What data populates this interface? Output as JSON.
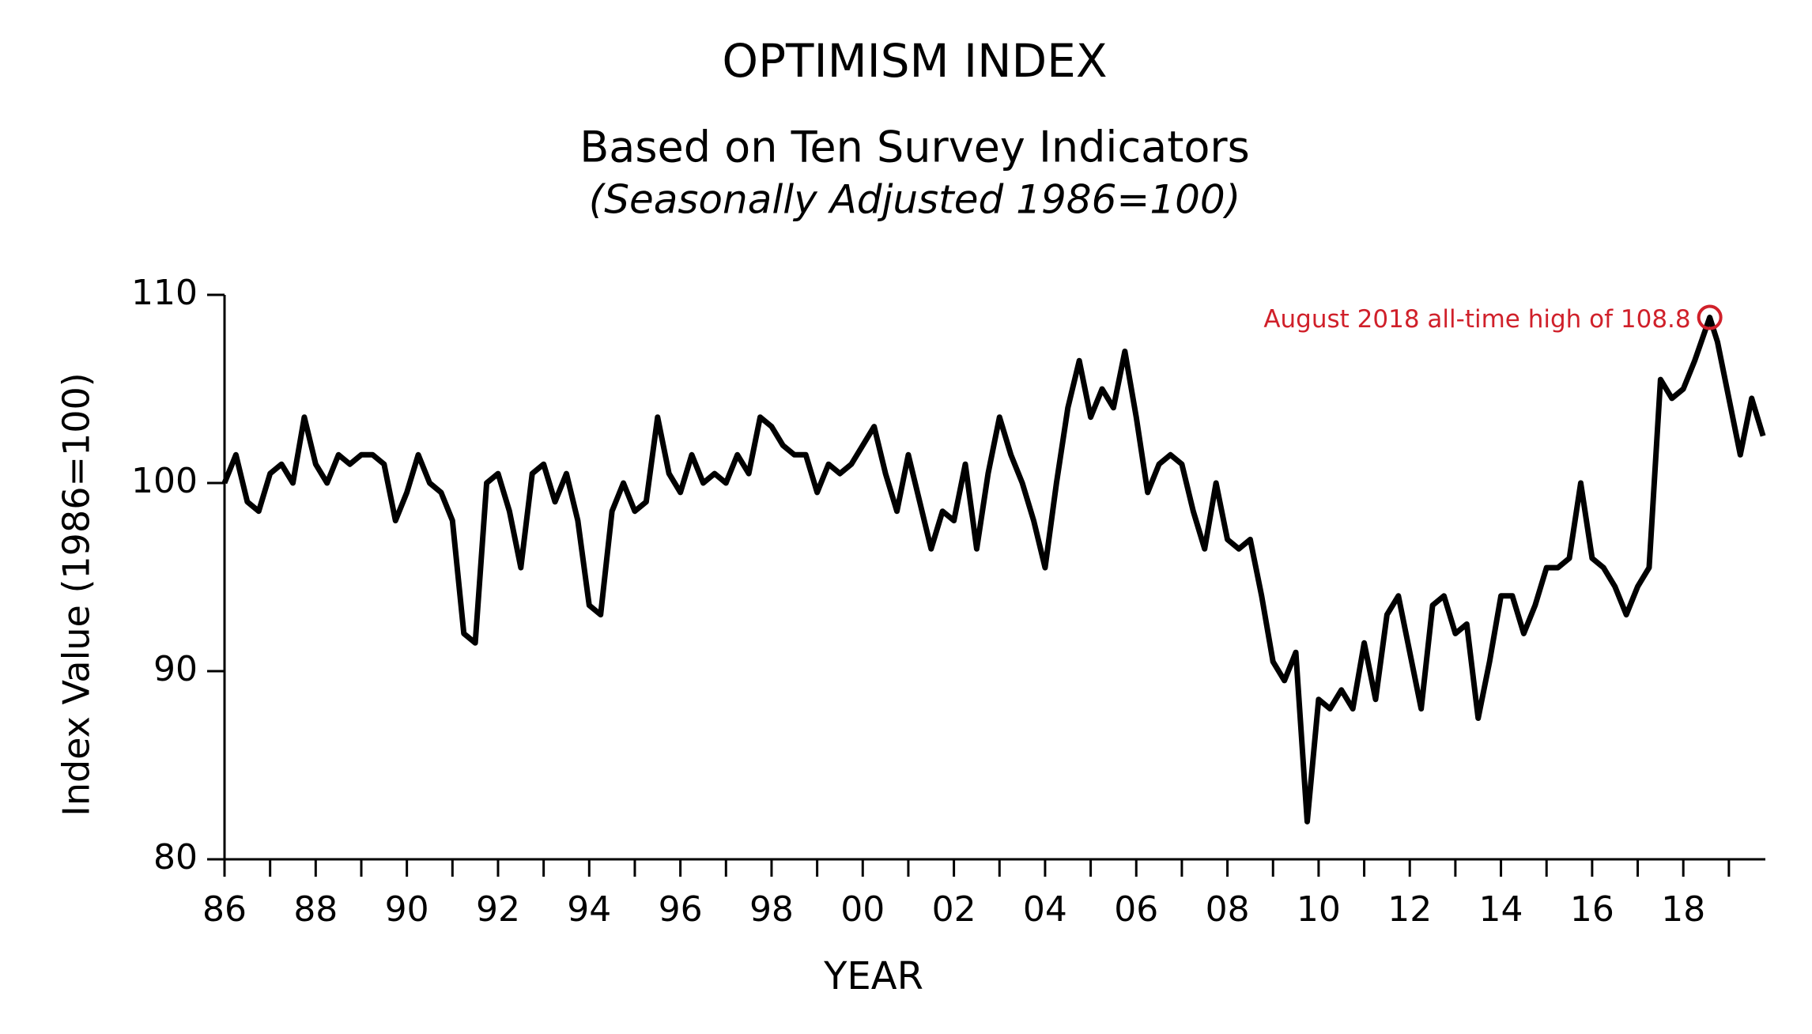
{
  "chart_data": {
    "type": "line",
    "title": "OPTIMISM INDEX",
    "subtitle": "Based on Ten Survey Indicators",
    "subtitle2": "(Seasonally Adjusted 1986=100)",
    "xlabel": "YEAR",
    "ylabel": "Index Value (1986=100)",
    "xlim": [
      1986,
      2019.8
    ],
    "ylim": [
      80,
      110
    ],
    "yticks": [
      80,
      90,
      100,
      110
    ],
    "xticks": [
      {
        "value": 1986,
        "label": "86"
      },
      {
        "value": 1988,
        "label": "88"
      },
      {
        "value": 1990,
        "label": "90"
      },
      {
        "value": 1992,
        "label": "92"
      },
      {
        "value": 1994,
        "label": "94"
      },
      {
        "value": 1996,
        "label": "96"
      },
      {
        "value": 1998,
        "label": "98"
      },
      {
        "value": 2000,
        "label": "00"
      },
      {
        "value": 2002,
        "label": "02"
      },
      {
        "value": 2004,
        "label": "04"
      },
      {
        "value": 2006,
        "label": "06"
      },
      {
        "value": 2008,
        "label": "08"
      },
      {
        "value": 2010,
        "label": "10"
      },
      {
        "value": 2012,
        "label": "12"
      },
      {
        "value": 2014,
        "label": "14"
      },
      {
        "value": 2016,
        "label": "16"
      },
      {
        "value": 2018,
        "label": "18"
      }
    ],
    "xminorticks": [
      1987,
      1989,
      1991,
      1993,
      1995,
      1997,
      1999,
      2001,
      2003,
      2005,
      2007,
      2009,
      2011,
      2013,
      2015,
      2017,
      2019
    ],
    "color": "#000000",
    "x": [
      1986,
      1986.25,
      1986.5,
      1986.75,
      1987,
      1987.25,
      1987.5,
      1987.75,
      1988,
      1988.25,
      1988.5,
      1988.75,
      1989,
      1989.25,
      1989.5,
      1989.75,
      1990,
      1990.25,
      1990.5,
      1990.75,
      1991,
      1991.25,
      1991.5,
      1991.75,
      1992,
      1992.25,
      1992.5,
      1992.75,
      1993,
      1993.25,
      1993.5,
      1993.75,
      1994,
      1994.25,
      1994.5,
      1994.75,
      1995,
      1995.25,
      1995.5,
      1995.75,
      1996,
      1996.25,
      1996.5,
      1996.75,
      1997,
      1997.25,
      1997.5,
      1997.75,
      1998,
      1998.25,
      1998.5,
      1998.75,
      1999,
      1999.25,
      1999.5,
      1999.75,
      2000,
      2000.25,
      2000.5,
      2000.75,
      2001,
      2001.25,
      2001.5,
      2001.75,
      2002,
      2002.25,
      2002.5,
      2002.75,
      2003,
      2003.25,
      2003.5,
      2003.75,
      2004,
      2004.25,
      2004.5,
      2004.75,
      2005,
      2005.25,
      2005.5,
      2005.75,
      2006,
      2006.25,
      2006.5,
      2006.75,
      2007,
      2007.25,
      2007.5,
      2007.75,
      2008,
      2008.25,
      2008.5,
      2008.75,
      2009,
      2009.25,
      2009.5,
      2009.75,
      2010,
      2010.25,
      2010.5,
      2010.75,
      2011,
      2011.25,
      2011.5,
      2011.75,
      2012,
      2012.25,
      2012.5,
      2012.75,
      2013,
      2013.25,
      2013.5,
      2013.75,
      2014,
      2014.25,
      2014.5,
      2014.75,
      2015,
      2015.25,
      2015.5,
      2015.75,
      2016,
      2016.25,
      2016.5,
      2016.75,
      2017,
      2017.25,
      2017.5,
      2017.75,
      2018,
      2018.25,
      2018.58,
      2018.75,
      2019,
      2019.25,
      2019.5,
      2019.75
    ],
    "values": [
      100,
      101.5,
      99,
      98.5,
      100.5,
      101,
      100,
      103.5,
      101,
      100,
      101.5,
      101,
      101.5,
      101.5,
      101,
      98,
      99.5,
      101.5,
      100,
      99.5,
      98,
      92,
      91.5,
      100,
      100.5,
      98.5,
      95.5,
      100.5,
      101,
      99,
      100.5,
      98,
      93.5,
      93,
      98.5,
      100,
      98.5,
      99,
      103.5,
      100.5,
      99.5,
      101.5,
      100,
      100.5,
      100,
      101.5,
      100.5,
      103.5,
      103,
      102,
      101.5,
      101.5,
      99.5,
      101,
      100.5,
      101,
      102,
      103,
      100.5,
      98.5,
      101.5,
      99,
      96.5,
      98.5,
      98,
      101,
      96.5,
      100.5,
      103.5,
      101.5,
      100,
      98,
      95.5,
      100,
      104,
      106.5,
      103.5,
      105,
      104,
      107,
      103.5,
      99.5,
      101,
      101.5,
      101,
      98.5,
      96.5,
      100,
      97,
      96.5,
      97,
      94,
      90.5,
      89.5,
      91,
      82,
      88.5,
      88,
      89,
      88,
      91.5,
      88.5,
      93,
      94,
      91,
      88,
      93.5,
      94,
      92,
      92.5,
      87.5,
      90.5,
      94,
      94,
      92,
      93.5,
      95.5,
      95.5,
      96,
      100,
      96,
      95.5,
      94.5,
      93,
      94.5,
      95.5,
      105.5,
      104.5,
      105,
      106.5,
      108.8,
      107.5,
      104.5,
      101.5,
      104.5,
      102.5
    ],
    "annotation": {
      "text": "August 2018 all-time high of 108.8",
      "x": 2018.58,
      "y": 108.8,
      "color": "#d0202a"
    }
  }
}
